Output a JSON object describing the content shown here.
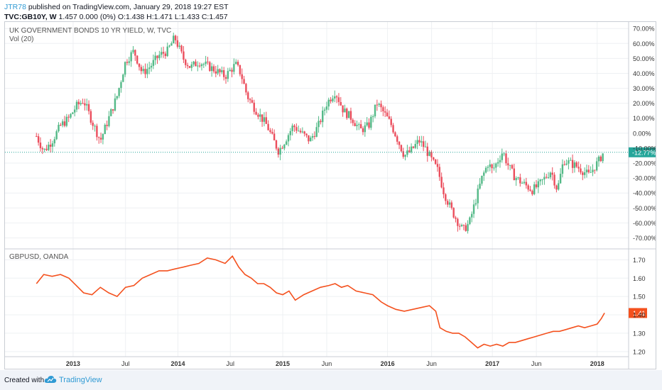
{
  "header": {
    "user": "JTR78",
    "published": "published on TradingView.com, January 29, 2018 19:27 EST",
    "ticker": "TVC:GB10Y, W",
    "values": "1.457 0.000 (0%) O:1.438 H:1.471 L:1.433 C:1.457"
  },
  "footer": {
    "created": "Created with",
    "brand": "TradingView",
    "logo_icon": "tradingview-cloud-icon"
  },
  "colors": {
    "up": "#53b987",
    "down": "#eb4d5c",
    "line": "#f4511e",
    "tag": "#26a69a",
    "grid": "#eef0f3"
  },
  "chart_data": [
    {
      "type": "candlestick",
      "title": "UK GOVERNMENT BONDS 10 YR YIELD, W, TVC",
      "subtitle": "Vol (20)",
      "last_label": "-12.77%",
      "last_value": -12.77,
      "y_ticks": [
        "70.00%",
        "60.00%",
        "50.00%",
        "40.00%",
        "30.00%",
        "20.00%",
        "10.00%",
        "0.00%",
        "-10.00%",
        "-20.00%",
        "-30.00%",
        "-40.00%",
        "-50.00%",
        "-60.00%",
        "-70.00%"
      ],
      "y_tick_values": [
        70,
        60,
        50,
        40,
        30,
        20,
        10,
        0,
        -10,
        -20,
        -30,
        -40,
        -50,
        -60,
        -70
      ],
      "ylim": [
        -75,
        72
      ],
      "x_ticks": [
        "2013",
        "Jul",
        "2014",
        "Jul",
        "2015",
        "Jun",
        "2016",
        "Jun",
        "2017",
        "Jun",
        "2018"
      ],
      "x_tick_dates": [
        2013.0,
        2013.5,
        2014.0,
        2014.5,
        2015.0,
        2015.42,
        2016.0,
        2016.42,
        2017.0,
        2017.42,
        2018.0
      ],
      "xlim": [
        2012.35,
        2018.3
      ],
      "close_path": [
        [
          2012.65,
          -2
        ],
        [
          2012.72,
          -12
        ],
        [
          2012.8,
          -5
        ],
        [
          2012.88,
          5
        ],
        [
          2012.96,
          10
        ],
        [
          2013.03,
          18
        ],
        [
          2013.1,
          22
        ],
        [
          2013.18,
          8
        ],
        [
          2013.26,
          -5
        ],
        [
          2013.34,
          10
        ],
        [
          2013.42,
          25
        ],
        [
          2013.5,
          48
        ],
        [
          2013.58,
          55
        ],
        [
          2013.66,
          40
        ],
        [
          2013.74,
          45
        ],
        [
          2013.82,
          52
        ],
        [
          2013.9,
          55
        ],
        [
          2013.97,
          64
        ],
        [
          2014.05,
          50
        ],
        [
          2014.12,
          44
        ],
        [
          2014.2,
          48
        ],
        [
          2014.28,
          45
        ],
        [
          2014.36,
          42
        ],
        [
          2014.45,
          38
        ],
        [
          2014.55,
          46
        ],
        [
          2014.6,
          40
        ],
        [
          2014.66,
          25
        ],
        [
          2014.72,
          18
        ],
        [
          2014.78,
          12
        ],
        [
          2014.85,
          5
        ],
        [
          2014.9,
          -3
        ],
        [
          2014.96,
          -12
        ],
        [
          2015.02,
          -5
        ],
        [
          2015.1,
          5
        ],
        [
          2015.18,
          0
        ],
        [
          2015.26,
          -5
        ],
        [
          2015.34,
          5
        ],
        [
          2015.42,
          20
        ],
        [
          2015.5,
          28
        ],
        [
          2015.58,
          15
        ],
        [
          2015.66,
          10
        ],
        [
          2015.74,
          2
        ],
        [
          2015.82,
          5
        ],
        [
          2015.9,
          20
        ],
        [
          2015.98,
          12
        ],
        [
          2016.04,
          5
        ],
        [
          2016.1,
          -5
        ],
        [
          2016.16,
          -15
        ],
        [
          2016.22,
          -12
        ],
        [
          2016.3,
          -5
        ],
        [
          2016.36,
          -10
        ],
        [
          2016.42,
          -18
        ],
        [
          2016.48,
          -25
        ],
        [
          2016.54,
          -40
        ],
        [
          2016.6,
          -50
        ],
        [
          2016.66,
          -58
        ],
        [
          2016.72,
          -65
        ],
        [
          2016.78,
          -60
        ],
        [
          2016.84,
          -45
        ],
        [
          2016.9,
          -30
        ],
        [
          2016.96,
          -20
        ],
        [
          2017.0,
          -25
        ],
        [
          2017.04,
          -20
        ],
        [
          2017.1,
          -12
        ],
        [
          2017.14,
          -20
        ],
        [
          2017.2,
          -28
        ],
        [
          2017.26,
          -32
        ],
        [
          2017.32,
          -35
        ],
        [
          2017.38,
          -38
        ],
        [
          2017.44,
          -35
        ],
        [
          2017.5,
          -30
        ],
        [
          2017.56,
          -25
        ],
        [
          2017.62,
          -38
        ],
        [
          2017.68,
          -18
        ],
        [
          2017.74,
          -20
        ],
        [
          2017.8,
          -22
        ],
        [
          2017.86,
          -25
        ],
        [
          2017.92,
          -28
        ],
        [
          2017.98,
          -22
        ],
        [
          2018.02,
          -18
        ],
        [
          2018.06,
          -12.77
        ]
      ]
    },
    {
      "type": "line",
      "title": "GBPUSD, OANDA",
      "last_label": "1.41",
      "last_value": 1.41,
      "y_ticks": [
        "1.70",
        "1.60",
        "1.50",
        "1.40",
        "1.30",
        "1.20"
      ],
      "y_tick_values": [
        1.7,
        1.6,
        1.5,
        1.4,
        1.3,
        1.2
      ],
      "ylim": [
        1.18,
        1.74
      ],
      "x": [
        2012.65,
        2012.72,
        2012.8,
        2012.88,
        2012.96,
        2013.03,
        2013.1,
        2013.18,
        2013.26,
        2013.34,
        2013.42,
        2013.5,
        2013.58,
        2013.66,
        2013.74,
        2013.82,
        2013.9,
        2013.97,
        2014.05,
        2014.12,
        2014.2,
        2014.28,
        2014.36,
        2014.45,
        2014.52,
        2014.58,
        2014.64,
        2014.7,
        2014.76,
        2014.82,
        2014.88,
        2014.94,
        2015.0,
        2015.06,
        2015.12,
        2015.2,
        2015.28,
        2015.36,
        2015.44,
        2015.5,
        2015.56,
        2015.62,
        2015.7,
        2015.78,
        2015.86,
        2015.94,
        2016.0,
        2016.08,
        2016.16,
        2016.24,
        2016.32,
        2016.4,
        2016.46,
        2016.5,
        2016.56,
        2016.62,
        2016.68,
        2016.74,
        2016.8,
        2016.86,
        2016.92,
        2016.98,
        2017.04,
        2017.1,
        2017.16,
        2017.22,
        2017.28,
        2017.34,
        2017.4,
        2017.46,
        2017.52,
        2017.58,
        2017.64,
        2017.7,
        2017.76,
        2017.82,
        2017.88,
        2017.94,
        2018.0,
        2018.04,
        2018.07
      ],
      "values": [
        1.57,
        1.62,
        1.61,
        1.62,
        1.6,
        1.56,
        1.52,
        1.51,
        1.55,
        1.52,
        1.5,
        1.55,
        1.56,
        1.6,
        1.62,
        1.64,
        1.64,
        1.65,
        1.66,
        1.67,
        1.68,
        1.71,
        1.7,
        1.68,
        1.72,
        1.66,
        1.62,
        1.6,
        1.57,
        1.57,
        1.55,
        1.52,
        1.51,
        1.53,
        1.48,
        1.51,
        1.53,
        1.55,
        1.56,
        1.57,
        1.55,
        1.56,
        1.53,
        1.52,
        1.51,
        1.47,
        1.45,
        1.43,
        1.42,
        1.43,
        1.44,
        1.45,
        1.42,
        1.33,
        1.31,
        1.3,
        1.3,
        1.28,
        1.25,
        1.22,
        1.24,
        1.23,
        1.24,
        1.23,
        1.25,
        1.25,
        1.26,
        1.27,
        1.28,
        1.29,
        1.3,
        1.31,
        1.31,
        1.32,
        1.33,
        1.34,
        1.33,
        1.34,
        1.35,
        1.38,
        1.41
      ]
    }
  ]
}
